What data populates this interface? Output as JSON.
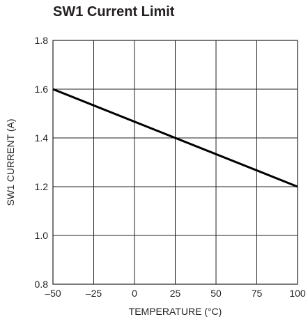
{
  "chart_data": {
    "type": "line",
    "title": "SW1 Current Limit",
    "xlabel": "TEMPERATURE (°C)",
    "ylabel": "SW1 CURRENT (A)",
    "xlim": [
      -50,
      100
    ],
    "ylim": [
      0.8,
      1.8
    ],
    "xticks": [
      -50,
      -25,
      0,
      25,
      50,
      75,
      100
    ],
    "xtick_labels": [
      "–50",
      "–25",
      "0",
      "25",
      "50",
      "75",
      "100"
    ],
    "yticks": [
      0.8,
      1.0,
      1.2,
      1.4,
      1.6,
      1.8
    ],
    "ytick_labels": [
      "0.8",
      "1.0",
      "1.2",
      "1.4",
      "1.6",
      "1.8"
    ],
    "grid": true,
    "series": [
      {
        "x": [
          -50,
          25,
          100
        ],
        "y": [
          1.6,
          1.4,
          1.2
        ]
      }
    ],
    "colors": {
      "line": "#000000",
      "grid": "#231f20",
      "text": "#231f20"
    }
  }
}
